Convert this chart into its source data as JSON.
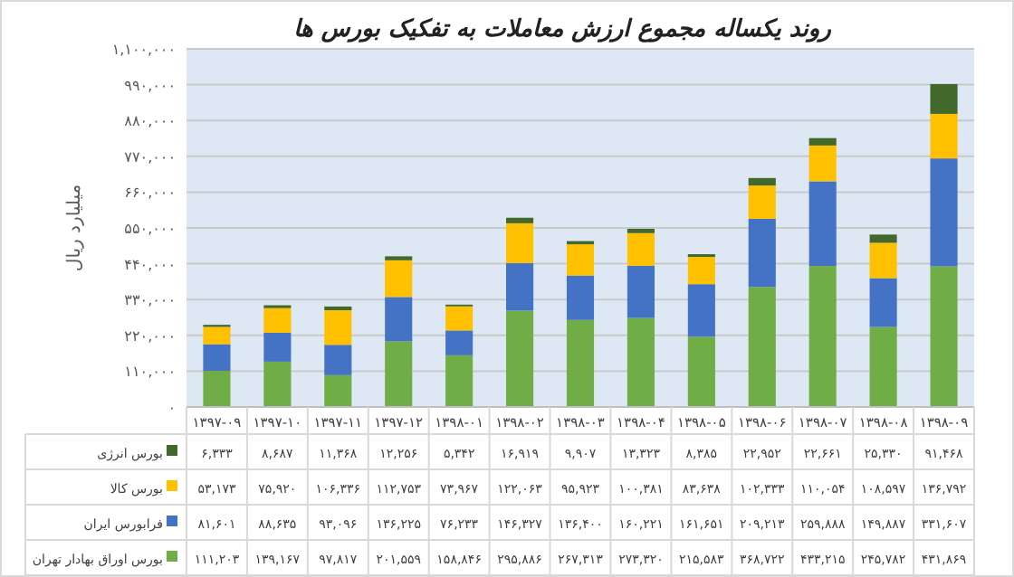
{
  "chart_data": {
    "type": "bar",
    "stacked": true,
    "title": "روند یکساله مجموع ارزش معاملات به تفکیک بورس ها",
    "ylabel": "میلیارد ریال",
    "categories": [
      "۱۳۹۷-۰۹",
      "۱۳۹۷-۱۰",
      "۱۳۹۷-۱۱",
      "۱۳۹۷-۱۲",
      "۱۳۹۸-۰۱",
      "۱۳۹۸-۰۲",
      "۱۳۹۸-۰۳",
      "۱۳۹۸-۰۴",
      "۱۳۹۸-۰۵",
      "۱۳۹۸-۰۶",
      "۱۳۹۸-۰۷",
      "۱۳۹۸-۰۸",
      "۱۳۹۸-۰۹"
    ],
    "series": [
      {
        "name": "بورس اوراق بهادار تهران",
        "color": "#70ad47",
        "values": [
          111203,
          139167,
          97817,
          201559,
          158846,
          295886,
          267313,
          273320,
          215583,
          368722,
          433215,
          245782,
          431869
        ],
        "value_labels": [
          "۱۱۱,۲۰۳",
          "۱۳۹,۱۶۷",
          "۹۷,۸۱۷",
          "۲۰۱,۵۵۹",
          "۱۵۸,۸۴۶",
          "۲۹۵,۸۸۶",
          "۲۶۷,۳۱۳",
          "۲۷۳,۳۲۰",
          "۲۱۵,۵۸۳",
          "۳۶۸,۷۲۲",
          "۴۳۳,۲۱۵",
          "۲۴۵,۷۸۲",
          "۴۳۱,۸۶۹"
        ]
      },
      {
        "name": "فرابورس ایران",
        "color": "#4472c4",
        "values": [
          81601,
          88635,
          93096,
          136225,
          76233,
          146327,
          136400,
          160221,
          161651,
          209213,
          259888,
          149887,
          331607
        ],
        "value_labels": [
          "۸۱,۶۰۱",
          "۸۸,۶۳۵",
          "۹۳,۰۹۶",
          "۱۳۶,۲۲۵",
          "۷۶,۲۳۳",
          "۱۴۶,۳۲۷",
          "۱۳۶,۴۰۰",
          "۱۶۰,۲۲۱",
          "۱۶۱,۶۵۱",
          "۲۰۹,۲۱۳",
          "۲۵۹,۸۸۸",
          "۱۴۹,۸۸۷",
          "۳۳۱,۶۰۷"
        ]
      },
      {
        "name": "بورس کالا",
        "color": "#ffc000",
        "values": [
          53173,
          75920,
          106336,
          112753,
          73967,
          122063,
          95923,
          100381,
          83638,
          102333,
          110054,
          108597,
          136792
        ],
        "value_labels": [
          "۵۳,۱۷۳",
          "۷۵,۹۲۰",
          "۱۰۶,۳۳۶",
          "۱۱۲,۷۵۳",
          "۷۳,۹۶۷",
          "۱۲۲,۰۶۳",
          "۹۵,۹۲۳",
          "۱۰۰,۳۸۱",
          "۸۳,۶۳۸",
          "۱۰۲,۳۳۳",
          "۱۱۰,۰۵۴",
          "۱۰۸,۵۹۷",
          "۱۳۶,۷۹۲"
        ]
      },
      {
        "name": "بورس انرژی",
        "color": "#43682b",
        "values": [
          6333,
          8687,
          11368,
          12256,
          5342,
          16919,
          9907,
          13323,
          8385,
          22952,
          22661,
          25330,
          91468
        ],
        "value_labels": [
          "۶,۳۳۳",
          "۸,۶۸۷",
          "۱۱,۳۶۸",
          "۱۲,۲۵۶",
          "۵,۳۴۲",
          "۱۶,۹۱۹",
          "۹,۹۰۷",
          "۱۳,۳۲۳",
          "۸,۳۸۵",
          "۲۲,۹۵۲",
          "۲۲,۶۶۱",
          "۲۵,۳۳۰",
          "۹۱,۴۶۸"
        ]
      }
    ],
    "ylim": [
      0,
      1100000
    ],
    "yticks": [
      {
        "value": 0,
        "label": "۰"
      },
      {
        "value": 110000,
        "label": "۱۱۰,۰۰۰"
      },
      {
        "value": 220000,
        "label": "۲۲۰,۰۰۰"
      },
      {
        "value": 330000,
        "label": "۳۳۰,۰۰۰"
      },
      {
        "value": 440000,
        "label": "۴۴۰,۰۰۰"
      },
      {
        "value": 550000,
        "label": "۵۵۰,۰۰۰"
      },
      {
        "value": 660000,
        "label": "۶۶۰,۰۰۰"
      },
      {
        "value": 770000,
        "label": "۷۷۰,۰۰۰"
      },
      {
        "value": 880000,
        "label": "۸۸۰,۰۰۰"
      },
      {
        "value": 990000,
        "label": "۹۹۰,۰۰۰"
      },
      {
        "value": 1100000,
        "label": "۱,۱۰۰,۰۰۰"
      }
    ],
    "grid": "y",
    "legend": "bottom"
  }
}
